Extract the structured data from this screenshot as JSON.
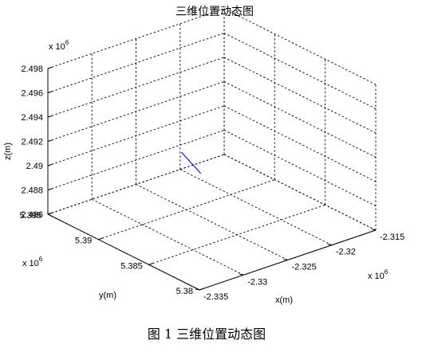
{
  "chart_data": {
    "type": "line",
    "title": "三维位置动态图",
    "xlabel": "x(m)",
    "ylabel": "y(m)",
    "zlabel": "z(m)",
    "x_multiplier": "x 10",
    "x_multiplier_exp": "6",
    "y_multiplier": "x 10",
    "y_multiplier_exp": "6",
    "z_multiplier": "x 10",
    "z_multiplier_exp": "6",
    "xlim": [
      -2.335,
      -2.315
    ],
    "ylim": [
      5.38,
      5.395
    ],
    "zlim": [
      2.486,
      2.498
    ],
    "x_ticks": [
      "-2.335",
      "-2.33",
      "-2.325",
      "-2.32",
      "-2.315"
    ],
    "y_ticks": [
      "5.38",
      "5.385",
      "5.39",
      "5.395"
    ],
    "z_ticks": [
      "2.486",
      "2.488",
      "2.49",
      "2.492",
      "2.494",
      "2.496",
      "2.498"
    ],
    "grid": true,
    "series": [
      {
        "color": "#0000ff",
        "points": [
          {
            "x": -2.3281,
            "y": 5.3878,
            "z": 2.4924
          },
          {
            "x": -2.3259,
            "y": 5.3878,
            "z": 2.4901
          }
        ]
      }
    ]
  },
  "caption": "图 1  三维位置动态图"
}
